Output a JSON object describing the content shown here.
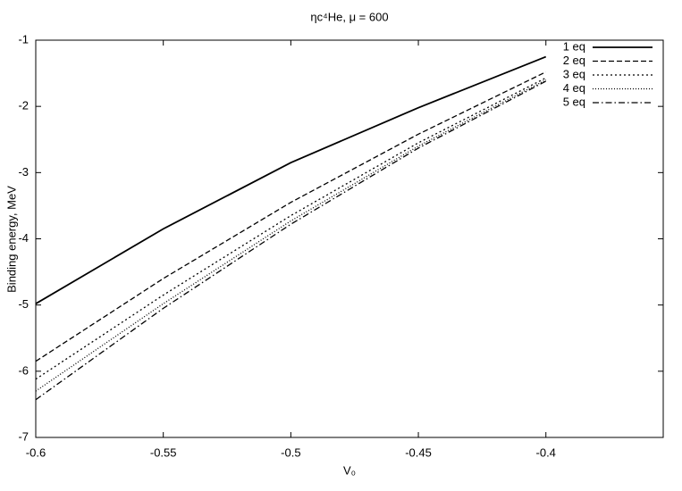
{
  "chart_data": {
    "type": "line",
    "title": "ηc⁴He, μ = 600",
    "xlabel": "V₀",
    "ylabel": "Binding energy, MeV",
    "x": [
      -0.6,
      -0.55,
      -0.5,
      -0.45,
      -0.4
    ],
    "series": [
      {
        "name": "1 eq",
        "color": "#000000",
        "dash": "solid",
        "values": [
          -4.98,
          -3.85,
          -2.85,
          -2.02,
          -1.25
        ]
      },
      {
        "name": "2 eq",
        "color": "#000000",
        "dash": "dashed",
        "values": [
          -5.85,
          -4.6,
          -3.45,
          -2.42,
          -1.48
        ]
      },
      {
        "name": "3 eq",
        "color": "#000000",
        "dash": "dotted",
        "values": [
          -6.12,
          -4.85,
          -3.65,
          -2.55,
          -1.57
        ]
      },
      {
        "name": "4 eq",
        "color": "#000000",
        "dash": "fine-dotted",
        "values": [
          -6.3,
          -4.98,
          -3.73,
          -2.6,
          -1.6
        ]
      },
      {
        "name": "5 eq",
        "color": "#000000",
        "dash": "dash-dot",
        "values": [
          -6.43,
          -5.05,
          -3.78,
          -2.63,
          -1.62
        ]
      }
    ],
    "xlim": [
      -0.6,
      -0.354
    ],
    "xticks": [
      -0.6,
      -0.55,
      -0.5,
      -0.45,
      -0.4
    ],
    "ylim": [
      -7,
      -1
    ],
    "yticks": [
      -7,
      -6,
      -5,
      -4,
      -3,
      -2,
      -1
    ],
    "grid": false,
    "legend": "top-right"
  }
}
